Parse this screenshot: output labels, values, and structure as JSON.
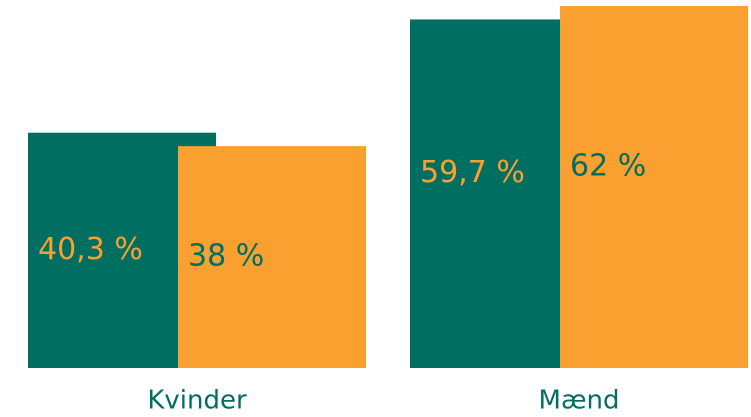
{
  "chart_data": {
    "type": "bar",
    "categories": [
      "Kvinder",
      "Mænd"
    ],
    "series": [
      {
        "color": "#006f62",
        "values": [
          40.3,
          59.7
        ],
        "value_labels": [
          "40,3 %",
          "59,7 %"
        ]
      },
      {
        "color": "#f9a031",
        "values": [
          38,
          62
        ],
        "value_labels": [
          "38 %",
          "62 %"
        ]
      }
    ]
  }
}
